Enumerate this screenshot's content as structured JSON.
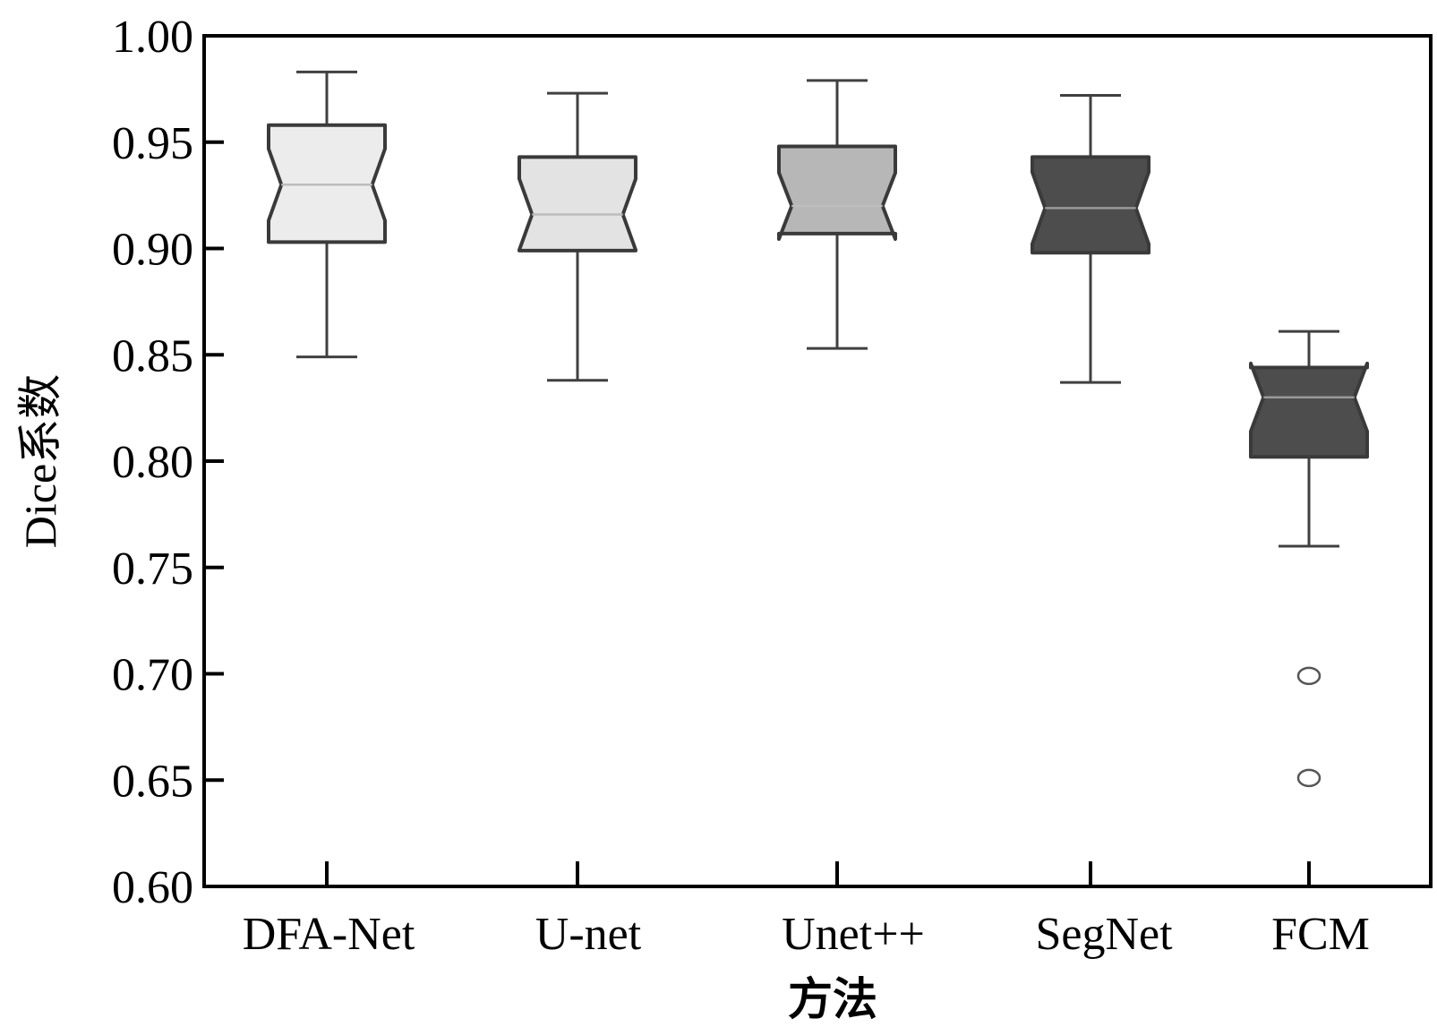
{
  "chart_data": {
    "type": "box",
    "xlabel": "方法",
    "ylabel": "Dice系数",
    "ylim": [
      0.6,
      1.0
    ],
    "yticks": [
      "0.60",
      "0.65",
      "0.70",
      "0.75",
      "0.80",
      "0.85",
      "0.90",
      "0.95",
      "1.00"
    ],
    "notched": true,
    "grid": false,
    "categories": [
      "DFA-Net",
      "U-net",
      "Unet++",
      "SegNet",
      "FCM"
    ],
    "boxes": [
      {
        "name": "DFA-Net",
        "whisker_low": 0.849,
        "q1": 0.903,
        "median": 0.93,
        "q3": 0.958,
        "whisker_high": 0.983,
        "outliers": [],
        "color": "#ececec"
      },
      {
        "name": "U-net",
        "whisker_low": 0.838,
        "q1": 0.899,
        "median": 0.916,
        "q3": 0.943,
        "whisker_high": 0.973,
        "outliers": [],
        "color": "#e3e3e3"
      },
      {
        "name": "Unet++",
        "whisker_low": 0.853,
        "q1": 0.907,
        "median": 0.92,
        "q3": 0.948,
        "whisker_high": 0.979,
        "outliers": [],
        "color": "#b7b7b7"
      },
      {
        "name": "SegNet",
        "whisker_low": 0.837,
        "q1": 0.898,
        "median": 0.919,
        "q3": 0.943,
        "whisker_high": 0.972,
        "outliers": [],
        "color": "#4d4d4d"
      },
      {
        "name": "FCM",
        "whisker_low": 0.76,
        "q1": 0.802,
        "median": 0.83,
        "q3": 0.844,
        "whisker_high": 0.861,
        "outliers": [
          0.699,
          0.651
        ],
        "color": "#4d4d4d"
      }
    ]
  }
}
